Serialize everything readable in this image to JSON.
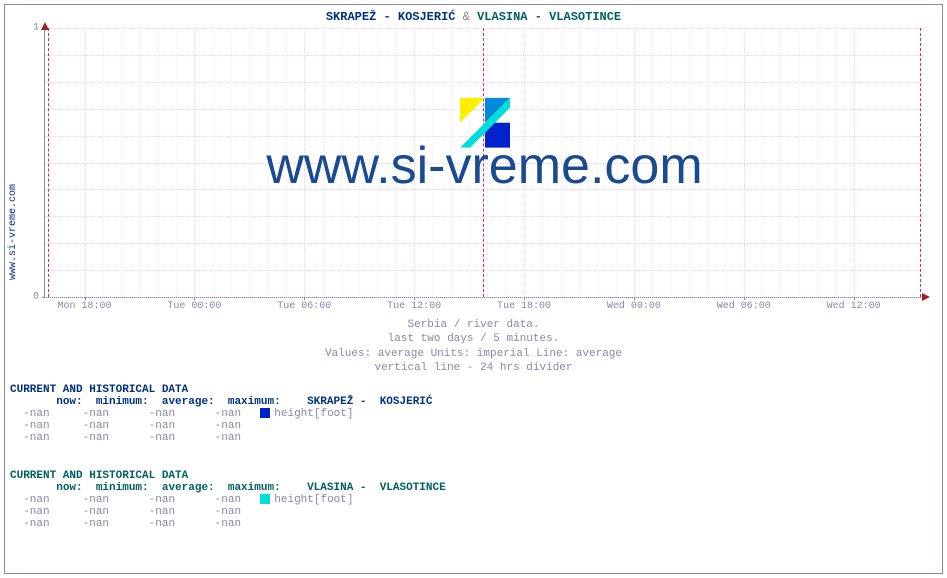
{
  "side_label": "www.si-vreme.com",
  "watermark_text": "www.si-vreme.com",
  "title": {
    "series1": " SKRAPEŽ -  KOSJERIĆ",
    "amp": " & ",
    "series2": " VLASINA -  VLASOTINCE"
  },
  "chart": {
    "type": "line",
    "ylim": [
      0,
      1
    ],
    "yticks": [
      {
        "pos": 1.0,
        "label": "0"
      },
      {
        "pos": 0.0,
        "label": "1"
      }
    ],
    "xtick_positions": [
      0.045,
      0.17,
      0.295,
      0.42,
      0.545,
      0.67,
      0.795,
      0.92
    ],
    "xtick_labels": [
      "Mon 18:00",
      "Tue 00:00",
      "Tue 06:00",
      "Tue 12:00",
      "Tue 18:00",
      "Wed 00:00",
      "Wed 06:00",
      "Wed 12:00"
    ],
    "xminor_steps": 6,
    "hgrid_steps": 10,
    "divider_positions": [
      0.003,
      0.498,
      0.995
    ],
    "grid_color": "#f0d0e0",
    "minor_grid_color": "#f8e8f0",
    "divider_color": "#d020a0",
    "axis_color": "#8888aa",
    "arrow_color": "#a02020",
    "background_color": "#ffffff"
  },
  "logo_colors": [
    "#ffee00",
    "#0088dd",
    "#0022cc",
    "#00dddd"
  ],
  "caption": {
    "l1": "Serbia / river data.",
    "l2": "last two days / 5 minutes.",
    "l3": "Values: average  Units: imperial  Line: average",
    "l4": "vertical line - 24 hrs  divider"
  },
  "sections": [
    {
      "header": "CURRENT AND HISTORICAL DATA",
      "color_class": "h1",
      "cols": {
        "now": "now:",
        "min": "minimum:",
        "avg": "average:",
        "max": "maximum:",
        "station": " SKRAPEŽ -  KOSJERIĆ"
      },
      "swatch_color": "#0022cc",
      "height_label": "height[foot]",
      "rows": [
        [
          "-nan",
          "-nan",
          "-nan",
          "-nan"
        ],
        [
          "-nan",
          "-nan",
          "-nan",
          "-nan"
        ],
        [
          "-nan",
          "-nan",
          "-nan",
          "-nan"
        ]
      ]
    },
    {
      "header": "CURRENT AND HISTORICAL DATA",
      "color_class": "h2",
      "cols": {
        "now": "now:",
        "min": "minimum:",
        "avg": "average:",
        "max": "maximum:",
        "station": " VLASINA -  VLASOTINCE"
      },
      "swatch_color": "#00dddd",
      "height_label": "height[foot]",
      "rows": [
        [
          "-nan",
          "-nan",
          "-nan",
          "-nan"
        ],
        [
          "-nan",
          "-nan",
          "-nan",
          "-nan"
        ],
        [
          "-nan",
          "-nan",
          "-nan",
          "-nan"
        ]
      ]
    }
  ]
}
